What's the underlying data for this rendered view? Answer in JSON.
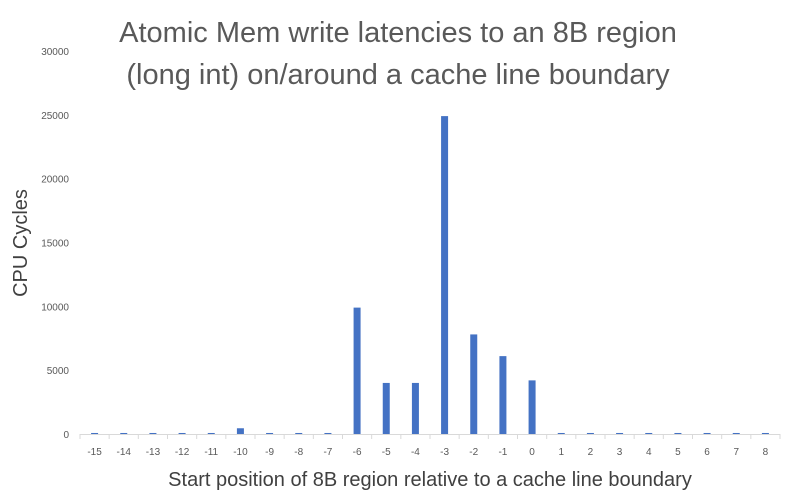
{
  "chart_data": {
    "type": "bar",
    "title_lines": [
      "Atomic Mem write latencies to an 8B region",
      "(long int) on/around a cache line boundary"
    ],
    "xlabel": "Start position of 8B region relative to a cache line boundary",
    "ylabel": "CPU Cycles",
    "ylim": [
      0,
      30000
    ],
    "yticks": [
      0,
      5000,
      10000,
      15000,
      20000,
      25000,
      30000
    ],
    "grid": false,
    "legend": "none",
    "bar_color": "#4472C4",
    "categories": [
      "-15",
      "-14",
      "-13",
      "-12",
      "-11",
      "-10",
      "-9",
      "-8",
      "-7",
      "-6",
      "-5",
      "-4",
      "-3",
      "-2",
      "-1",
      "0",
      "1",
      "2",
      "3",
      "4",
      "5",
      "6",
      "7",
      "8"
    ],
    "values": [
      80,
      80,
      80,
      80,
      80,
      450,
      80,
      80,
      80,
      9900,
      4000,
      4000,
      24900,
      7800,
      6100,
      4200,
      80,
      80,
      80,
      80,
      80,
      80,
      80,
      80
    ]
  }
}
